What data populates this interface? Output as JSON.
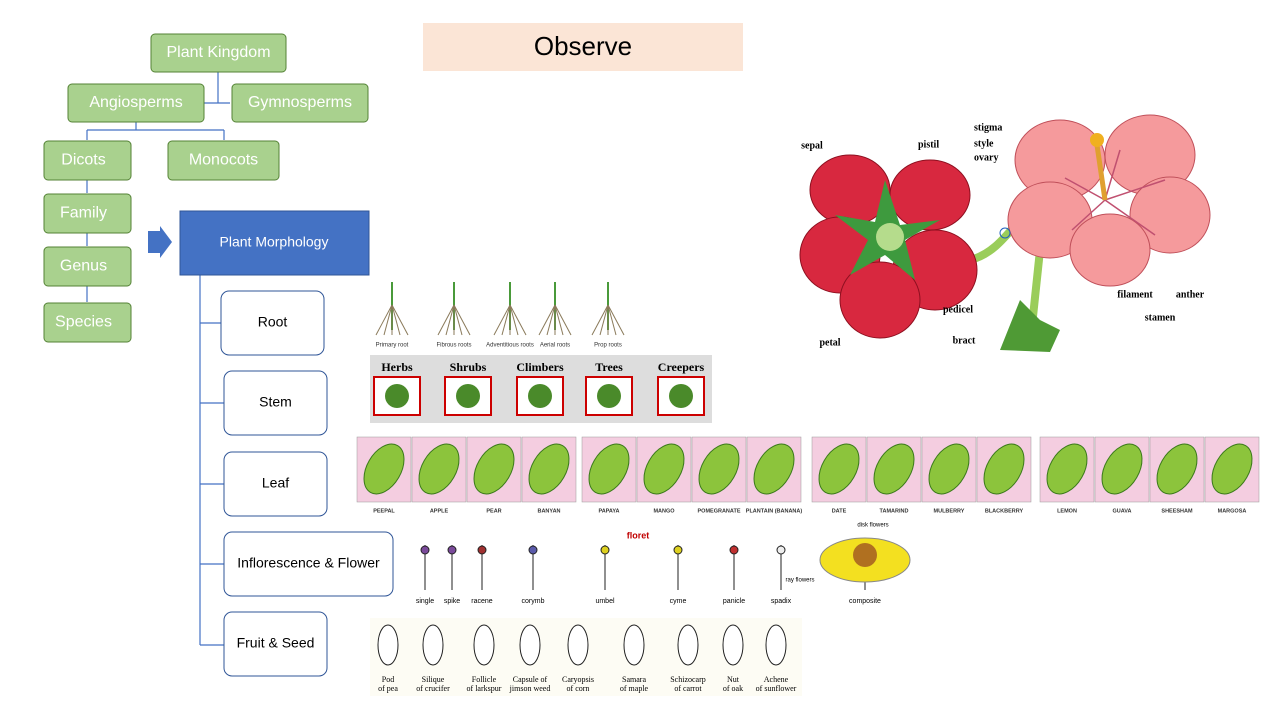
{
  "title": "Observe",
  "hierarchy": {
    "nodes": [
      "Plant Kingdom",
      "Angiosperms",
      "Gymnosperms",
      "Dicots",
      "Monocots",
      "Family",
      "Genus",
      "Species"
    ]
  },
  "morphology": {
    "title": "Plant Morphology",
    "parts": [
      "Root",
      "Stem",
      "Leaf",
      "Inflorescence & Flower",
      "Fruit & Seed"
    ]
  },
  "roots": [
    "Primary root",
    "Fibrous roots",
    "Adventitious roots",
    "Aerial roots",
    "Prop roots"
  ],
  "habits": [
    "Herbs",
    "Shrubs",
    "Climbers",
    "Trees",
    "Creepers"
  ],
  "leaves": [
    "PEEPAL",
    "APPLE",
    "PEAR",
    "BANYAN",
    "PAPAYA",
    "MANGO",
    "POMEGRANATE",
    "PLANTAIN (BANANA)",
    "DATE",
    "TAMARIND",
    "MULBERRY",
    "BLACKBERRY",
    "LEMON",
    "GUAVA",
    "SHEESHAM",
    "MARGOSA"
  ],
  "inflorescences": [
    "single",
    "spike",
    "racene",
    "corymb",
    "umbel",
    "cyme",
    "panicle",
    "spadix",
    "composite"
  ],
  "inflorescence_notes": [
    "floret",
    "disk flowers",
    "ray flowers"
  ],
  "fruits": [
    [
      "Pod",
      "of pea"
    ],
    [
      "Silique",
      "of crucifer"
    ],
    [
      "Follicle",
      "of larkspur"
    ],
    [
      "Capsule of",
      "jimson weed"
    ],
    [
      "Caryopsis",
      "of corn"
    ],
    [
      "Samara",
      "of maple"
    ],
    [
      "Schizocarp",
      "of carrot"
    ],
    [
      "Nut",
      "of oak"
    ],
    [
      "Achene",
      "of sunflower"
    ]
  ],
  "flower_labels": [
    "sepal",
    "pistil",
    "stigma",
    "style",
    "ovary",
    "petal",
    "pedicel",
    "bract",
    "filament",
    "anther",
    "stamen"
  ]
}
